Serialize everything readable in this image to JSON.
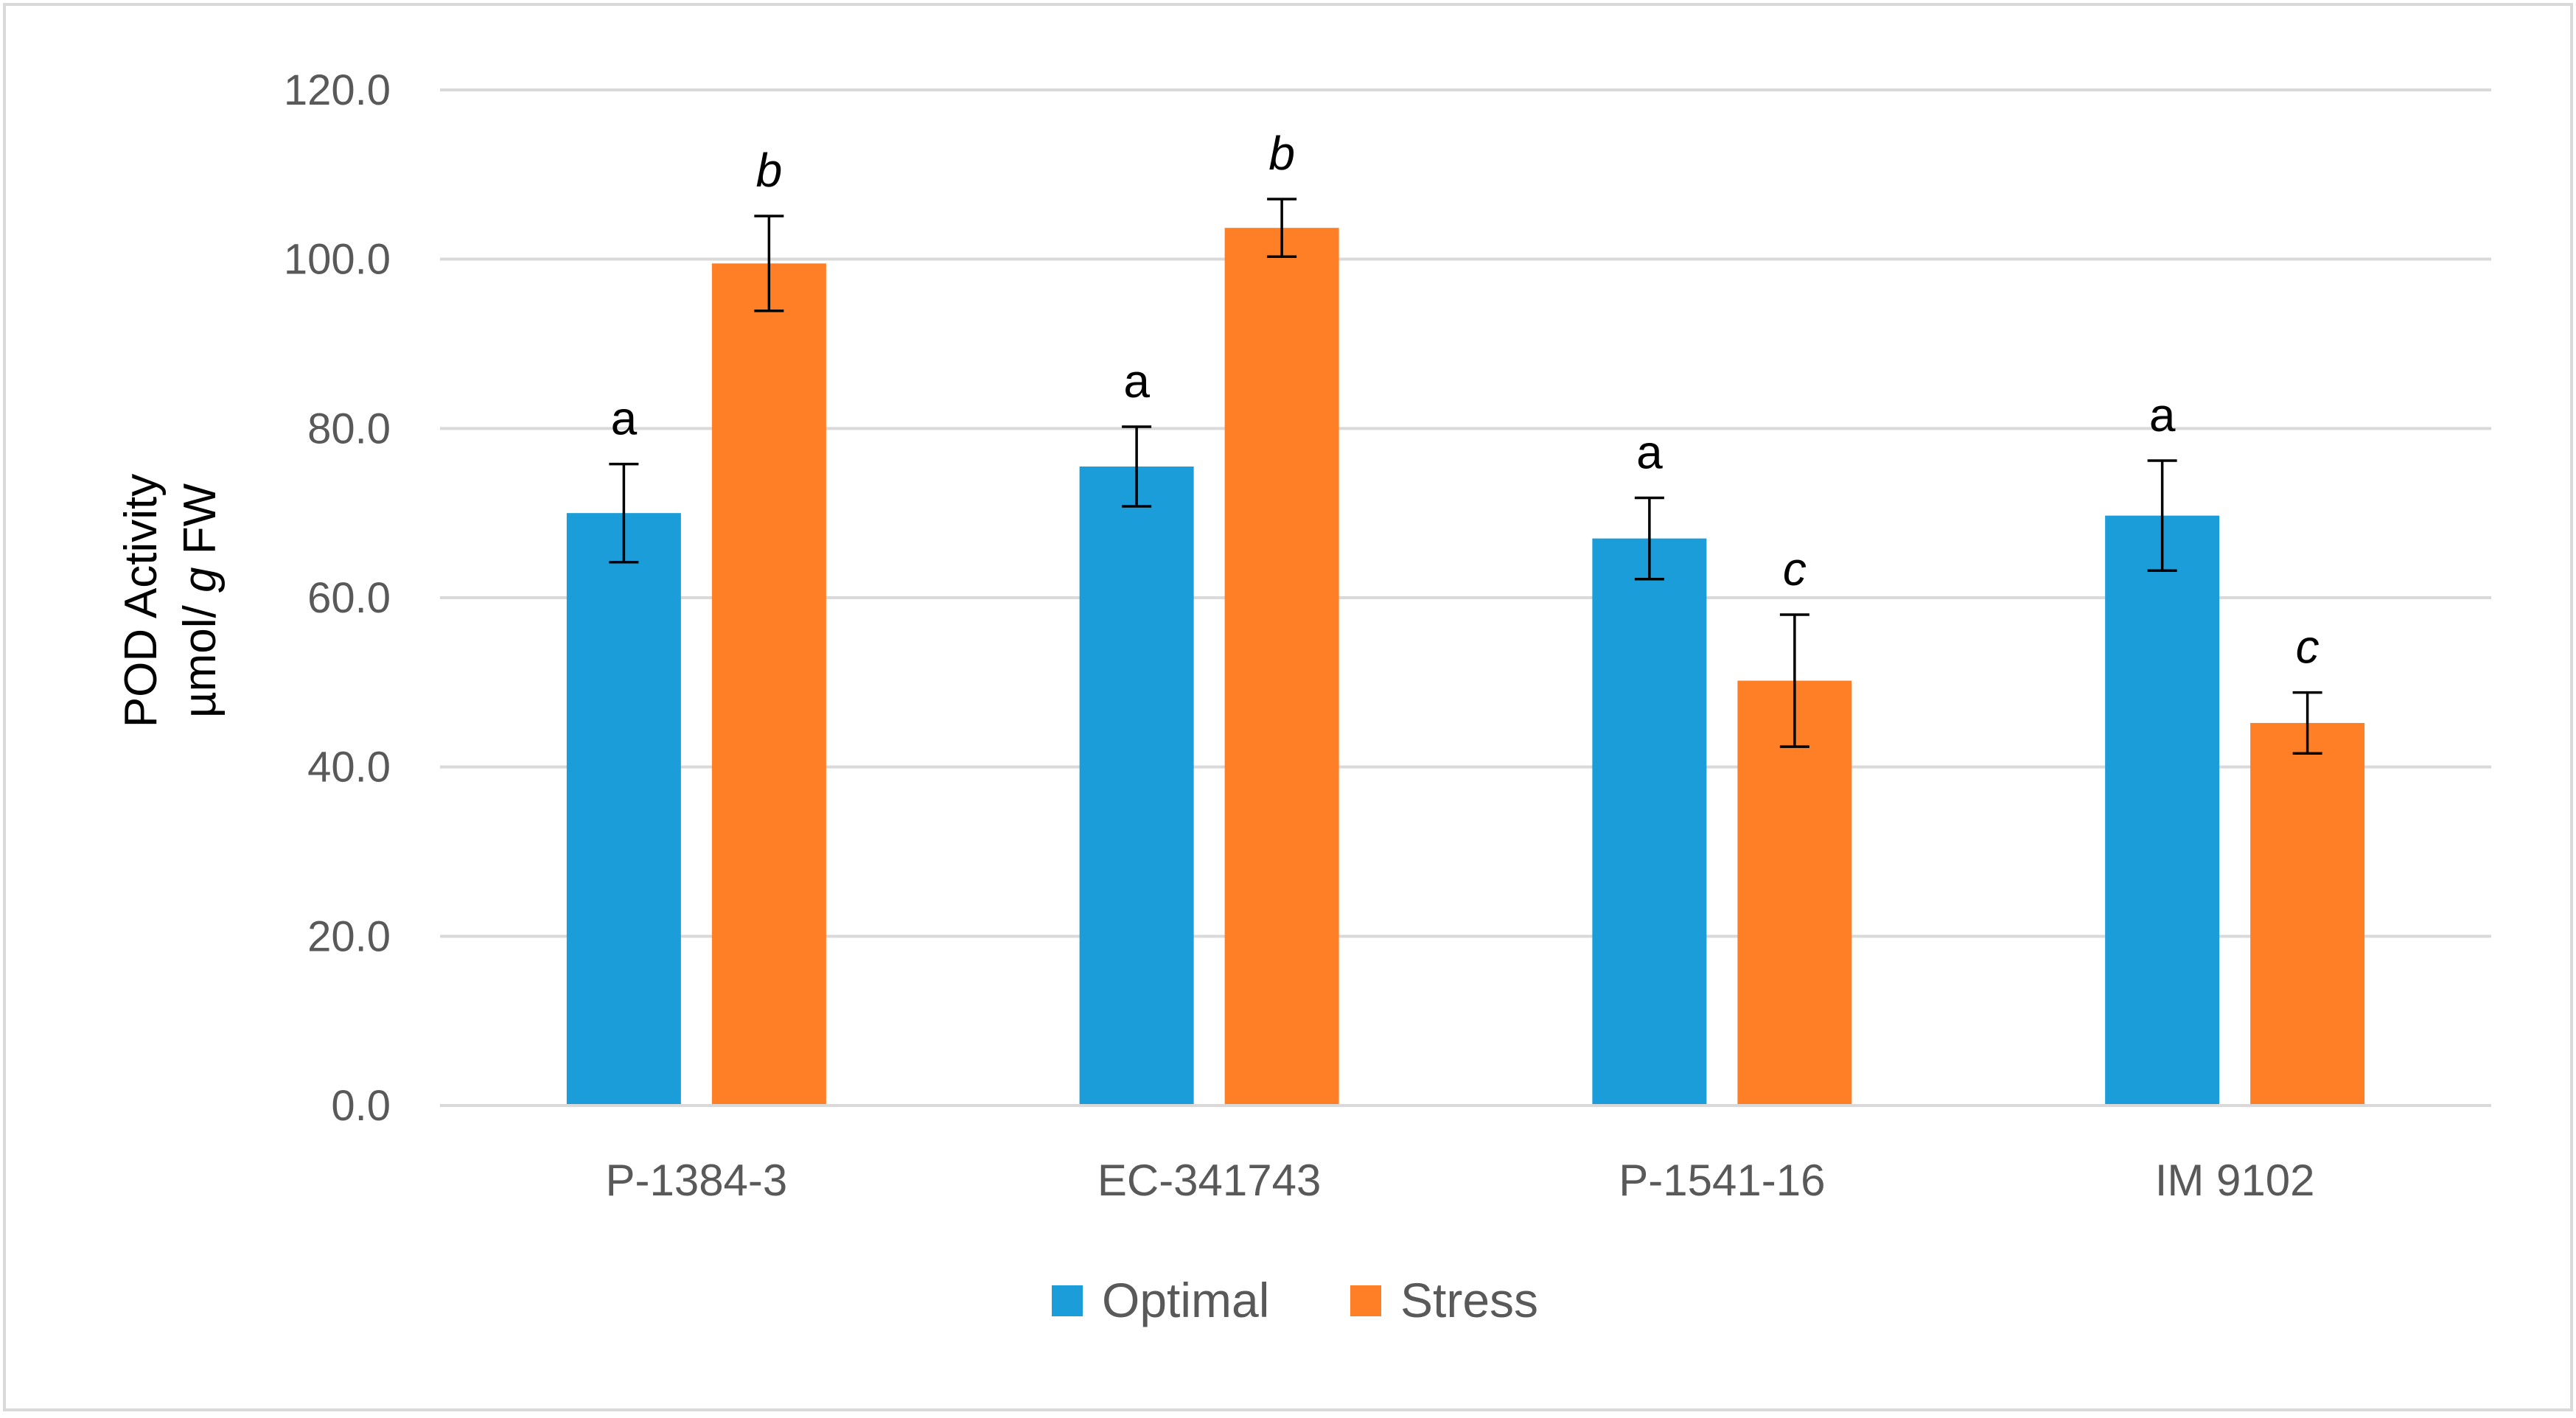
{
  "chart_data": {
    "type": "bar",
    "title": "",
    "xlabel": "",
    "ylabel_line1": "POD Activity",
    "ylabel_line2_prefix": "µmol/ ",
    "ylabel_line2_italic": "g",
    "ylabel_line2_suffix": " FW",
    "ylim": [
      0,
      120
    ],
    "yticks": [
      0,
      20,
      40,
      60,
      80,
      100,
      120
    ],
    "ytick_labels": [
      "0.0",
      "20.0",
      "40.0",
      "60.0",
      "80.0",
      "100.0",
      "120.0"
    ],
    "grid": true,
    "legend_position": "bottom-center",
    "categories": [
      "P-1384-3",
      "EC-341743",
      "P-1541-16",
      "IM 9102"
    ],
    "series": [
      {
        "name": "Optimal",
        "color": "#1b9dd9",
        "values": [
          70.0,
          75.5,
          67.0,
          69.7
        ],
        "errors": [
          5.8,
          4.7,
          4.8,
          6.5
        ],
        "labels": [
          "a",
          "a",
          "a",
          "a"
        ],
        "label_italic": false
      },
      {
        "name": "Stress",
        "color": "#ff7f27",
        "values": [
          99.5,
          103.7,
          50.2,
          45.2
        ],
        "errors": [
          5.6,
          3.4,
          7.8,
          3.6
        ],
        "labels": [
          "b",
          "b",
          "c",
          "c"
        ],
        "label_italic": true
      }
    ]
  }
}
